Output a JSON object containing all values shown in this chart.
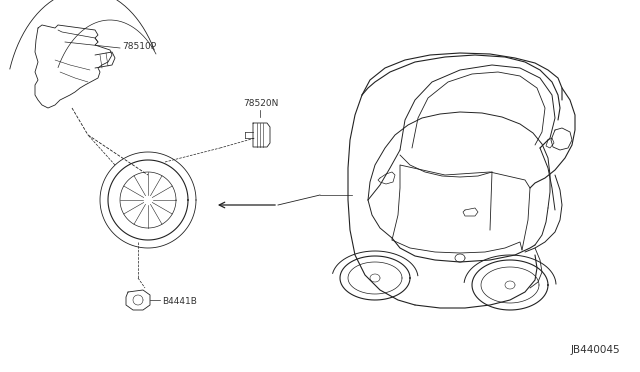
{
  "bg_color": "#ffffff",
  "line_color": "#222222",
  "label_color": "#333333",
  "diagram_code": "JB440045",
  "figsize": [
    6.4,
    3.72
  ],
  "dpi": 100,
  "label_78510P": "78510P",
  "label_78520N": "78520N",
  "label_B4441B": "B4441B"
}
